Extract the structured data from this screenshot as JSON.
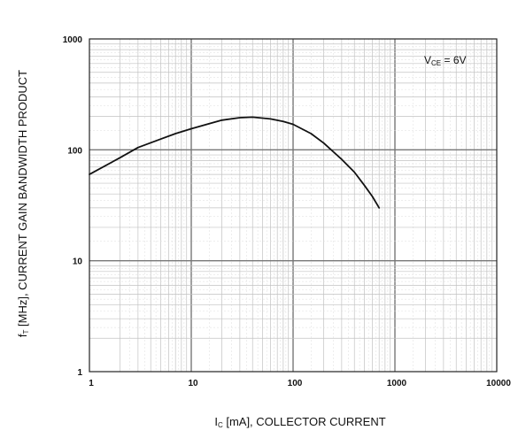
{
  "chart_data": {
    "type": "line",
    "x_scale": "log",
    "y_scale": "log",
    "xlim": [
      1,
      10000
    ],
    "ylim": [
      1,
      1000
    ],
    "grid": true,
    "x_ticks": [
      {
        "value": 1,
        "label": "1"
      },
      {
        "value": 10,
        "label": "10"
      },
      {
        "value": 100,
        "label": "100"
      },
      {
        "value": 1000,
        "label": "1000"
      },
      {
        "value": 10000,
        "label": "10000"
      }
    ],
    "y_ticks": [
      {
        "value": 1,
        "label": "1"
      },
      {
        "value": 10,
        "label": "10"
      },
      {
        "value": 100,
        "label": "100"
      },
      {
        "value": 1000,
        "label": "1000"
      }
    ],
    "xlabel": {
      "symbol": "I",
      "subscript": "C",
      "text": " [mA], COLLECTOR CURRENT"
    },
    "ylabel": {
      "symbol": "f",
      "subscript": "T",
      "text": " [MHz], CURRENT GAIN BANDWIDTH PRODUCT"
    },
    "annotation": {
      "symbol": "V",
      "subscript": "CE",
      "text": " = 6V"
    },
    "series": [
      {
        "x": [
          1,
          2,
          3,
          5,
          7,
          10,
          15,
          20,
          30,
          40,
          60,
          80,
          100,
          150,
          200,
          300,
          400,
          500,
          600,
          700
        ],
        "y": [
          60,
          85,
          105,
          125,
          140,
          155,
          172,
          185,
          195,
          197,
          190,
          180,
          170,
          140,
          115,
          82,
          63,
          48,
          38,
          30
        ]
      }
    ],
    "line_color": "#111111"
  }
}
